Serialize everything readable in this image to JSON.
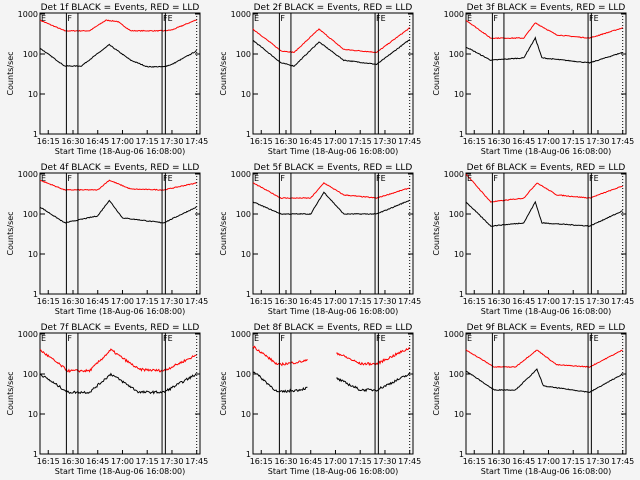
{
  "chart_data": {
    "type": "line",
    "layout": "3x3 grid",
    "xlabel": "Start Time (18-Aug-06 16:08:00)",
    "ylabel": "Counts/sec",
    "yscale": "log",
    "ylim": [
      1,
      1000
    ],
    "y_ticks": [
      "1",
      "10",
      "100",
      "1000"
    ],
    "x_ticks": [
      "16:15",
      "16:30",
      "16:45",
      "17:00",
      "17:15",
      "17:30",
      "17:45"
    ],
    "colors": {
      "events": "#000000",
      "lld": "#ff0000"
    },
    "markers": [
      {
        "label": "E",
        "time": "16:10"
      },
      {
        "label": "F",
        "time": "16:26"
      },
      {
        "label": "FE",
        "time": "17:24"
      }
    ],
    "vertical_lines": [
      {
        "time": "16:26",
        "style": "solid"
      },
      {
        "time": "16:33",
        "style": "solid"
      },
      {
        "time": "17:24",
        "style": "solid"
      },
      {
        "time": "17:26",
        "style": "solid"
      },
      {
        "time": "17:45",
        "style": "dotted"
      }
    ],
    "panels": [
      {
        "title": "Det 1f BLACK = Events, RED = LLD",
        "red": [
          [
            "16:10",
            700
          ],
          [
            "16:25",
            380
          ],
          [
            "16:40",
            380
          ],
          [
            "16:50",
            700
          ],
          [
            "16:57",
            650
          ],
          [
            "17:05",
            380
          ],
          [
            "17:25",
            380
          ],
          [
            "17:30",
            400
          ],
          [
            "17:45",
            720
          ]
        ],
        "black": [
          [
            "16:10",
            140
          ],
          [
            "16:25",
            50
          ],
          [
            "16:35",
            50
          ],
          [
            "16:52",
            170
          ],
          [
            "17:05",
            70
          ],
          [
            "17:15",
            48
          ],
          [
            "17:25",
            48
          ],
          [
            "17:30",
            55
          ],
          [
            "17:45",
            120
          ]
        ]
      },
      {
        "title": "Det 2f BLACK = Events, RED = LLD",
        "red": [
          [
            "16:10",
            420
          ],
          [
            "16:27",
            120
          ],
          [
            "16:35",
            110
          ],
          [
            "16:50",
            420
          ],
          [
            "17:05",
            130
          ],
          [
            "17:25",
            110
          ],
          [
            "17:45",
            450
          ]
        ],
        "black": [
          [
            "16:10",
            220
          ],
          [
            "16:27",
            60
          ],
          [
            "16:35",
            50
          ],
          [
            "16:50",
            200
          ],
          [
            "17:05",
            70
          ],
          [
            "17:25",
            55
          ],
          [
            "17:45",
            230
          ]
        ]
      },
      {
        "title": "Det 3f BLACK = Events, RED = LLD",
        "red": [
          [
            "16:10",
            700
          ],
          [
            "16:25",
            250
          ],
          [
            "16:45",
            250
          ],
          [
            "16:52",
            600
          ],
          [
            "17:05",
            300
          ],
          [
            "17:25",
            250
          ],
          [
            "17:45",
            450
          ]
        ],
        "black": [
          [
            "16:10",
            150
          ],
          [
            "16:25",
            70
          ],
          [
            "16:45",
            80
          ],
          [
            "16:52",
            250
          ],
          [
            "16:56",
            80
          ],
          [
            "17:25",
            60
          ],
          [
            "17:45",
            110
          ]
        ]
      },
      {
        "title": "Det 4f BLACK = Events, RED = LLD",
        "red": [
          [
            "16:10",
            700
          ],
          [
            "16:25",
            400
          ],
          [
            "16:45",
            400
          ],
          [
            "16:52",
            700
          ],
          [
            "17:05",
            420
          ],
          [
            "17:25",
            400
          ],
          [
            "17:45",
            600
          ]
        ],
        "black": [
          [
            "16:10",
            150
          ],
          [
            "16:25",
            60
          ],
          [
            "16:45",
            90
          ],
          [
            "16:52",
            220
          ],
          [
            "17:00",
            80
          ],
          [
            "17:25",
            60
          ],
          [
            "17:45",
            150
          ]
        ]
      },
      {
        "title": "Det 5f BLACK = Events, RED = LLD",
        "red": [
          [
            "16:10",
            600
          ],
          [
            "16:27",
            250
          ],
          [
            "16:45",
            250
          ],
          [
            "16:53",
            600
          ],
          [
            "17:05",
            300
          ],
          [
            "17:25",
            250
          ],
          [
            "17:45",
            450
          ]
        ],
        "black": [
          [
            "16:10",
            200
          ],
          [
            "16:27",
            100
          ],
          [
            "16:45",
            100
          ],
          [
            "16:53",
            350
          ],
          [
            "17:05",
            100
          ],
          [
            "17:25",
            100
          ],
          [
            "17:45",
            220
          ]
        ]
      },
      {
        "title": "Det 6f BLACK = Events, RED = LLD",
        "red": [
          [
            "16:10",
            1000
          ],
          [
            "16:25",
            200
          ],
          [
            "16:45",
            250
          ],
          [
            "16:53",
            600
          ],
          [
            "17:05",
            300
          ],
          [
            "17:25",
            250
          ],
          [
            "17:45",
            500
          ]
        ],
        "black": [
          [
            "16:10",
            200
          ],
          [
            "16:25",
            50
          ],
          [
            "16:45",
            60
          ],
          [
            "16:52",
            200
          ],
          [
            "16:56",
            60
          ],
          [
            "17:25",
            50
          ],
          [
            "17:45",
            120
          ]
        ]
      },
      {
        "title": "Det 7f BLACK = Events, RED = LLD",
        "red": [
          [
            "16:10",
            400
          ],
          [
            "16:27",
            120
          ],
          [
            "16:40",
            120
          ],
          [
            "16:53",
            400
          ],
          [
            "17:10",
            130
          ],
          [
            "17:25",
            120
          ],
          [
            "17:45",
            300
          ]
        ],
        "black": [
          [
            "16:10",
            100
          ],
          [
            "16:27",
            35
          ],
          [
            "16:40",
            35
          ],
          [
            "16:53",
            100
          ],
          [
            "17:10",
            35
          ],
          [
            "17:25",
            35
          ],
          [
            "17:45",
            100
          ]
        ]
      },
      {
        "title": "Det 8f BLACK = Events, RED = LLD",
        "red": [
          [
            "16:10",
            500
          ],
          [
            "16:25",
            170
          ],
          [
            "16:38",
            200
          ],
          [
            "16:43",
            220
          ],
          [
            "16:44",
            null
          ],
          [
            "17:00",
            350
          ],
          [
            "17:15",
            180
          ],
          [
            "17:25",
            180
          ],
          [
            "17:45",
            450
          ]
        ],
        "black": [
          [
            "16:10",
            120
          ],
          [
            "16:25",
            35
          ],
          [
            "16:38",
            40
          ],
          [
            "16:43",
            45
          ],
          [
            "16:44",
            null
          ],
          [
            "17:00",
            80
          ],
          [
            "17:15",
            40
          ],
          [
            "17:25",
            40
          ],
          [
            "17:45",
            100
          ]
        ]
      },
      {
        "title": "Det 9f BLACK = Events, RED = LLD",
        "red": [
          [
            "16:10",
            400
          ],
          [
            "16:27",
            150
          ],
          [
            "16:40",
            150
          ],
          [
            "16:53",
            400
          ],
          [
            "17:05",
            170
          ],
          [
            "17:25",
            150
          ],
          [
            "17:45",
            400
          ]
        ],
        "black": [
          [
            "16:10",
            120
          ],
          [
            "16:27",
            40
          ],
          [
            "16:40",
            40
          ],
          [
            "16:53",
            130
          ],
          [
            "16:57",
            50
          ],
          [
            "17:25",
            35
          ],
          [
            "17:45",
            100
          ]
        ]
      }
    ]
  }
}
